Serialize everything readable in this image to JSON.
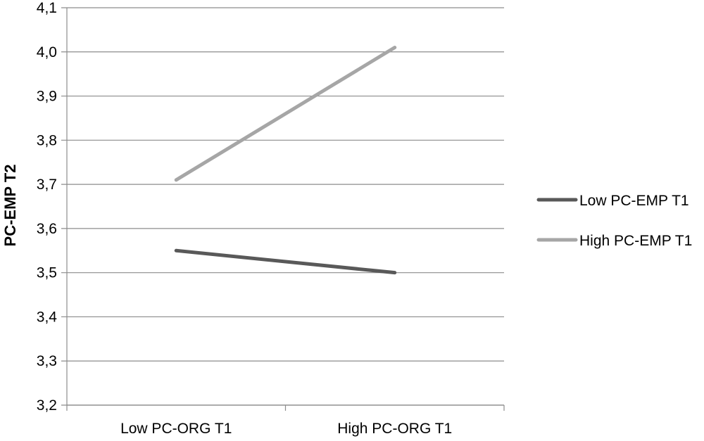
{
  "chart_data": {
    "type": "line",
    "title": "",
    "xlabel": "",
    "ylabel": "PC-EMP T2",
    "categories": [
      "Low PC-ORG T1",
      "High PC-ORG T1"
    ],
    "ylim": [
      3.2,
      4.1
    ],
    "yticks": [
      "3,2",
      "3,3",
      "3,4",
      "3,5",
      "3,6",
      "3,7",
      "3,8",
      "3,9",
      "4,0",
      "4,1"
    ],
    "grid": true,
    "legend_position": "right",
    "series": [
      {
        "name": "Low PC-EMP T1",
        "values": [
          3.55,
          3.5
        ],
        "color": "#595959"
      },
      {
        "name": "High PC-EMP T1",
        "values": [
          3.71,
          4.01
        ],
        "color": "#a6a6a6"
      }
    ]
  }
}
